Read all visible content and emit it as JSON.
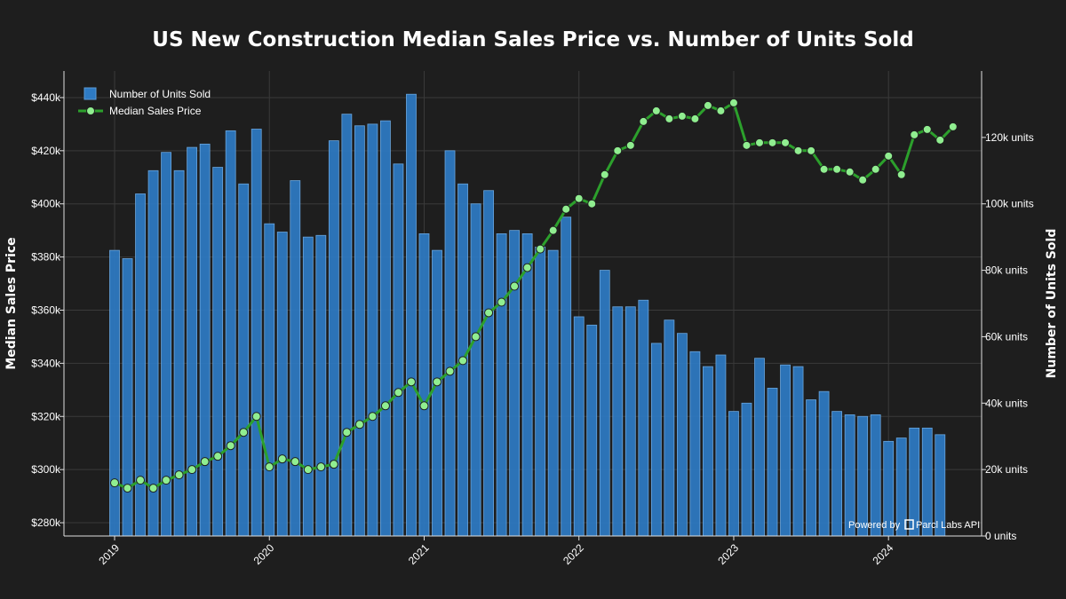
{
  "chart_data": {
    "type": "bar+line",
    "title": "US New Construction Median Sales Price vs. Number of Units Sold",
    "ylabel_left": "Median Sales Price",
    "ylabel_right": "Number of Units Sold",
    "y_left_range": [
      275000,
      450000
    ],
    "y_right_range": [
      0,
      140000
    ],
    "y_left_ticks": [
      "$280k",
      "$300k",
      "$320k",
      "$340k",
      "$360k",
      "$380k",
      "$400k",
      "$420k",
      "$440k"
    ],
    "y_right_ticks": [
      "0 units",
      "20k units",
      "40k units",
      "60k units",
      "80k units",
      "100k units",
      "120k units"
    ],
    "x_ticks": [
      "2019",
      "2020",
      "2021",
      "2022",
      "2023",
      "2024"
    ],
    "x_start": "2019-01",
    "grid": true,
    "legend_position": "top-left",
    "credit": "Powered by",
    "credit_brand": "Parcl Labs API",
    "series": [
      {
        "name": "Number of Units Sold",
        "kind": "bar",
        "axis": "right",
        "color": "#2e7bc4",
        "values": [
          86000,
          83500,
          103000,
          110000,
          115500,
          110000,
          117000,
          118000,
          111000,
          122000,
          106000,
          122500,
          94000,
          91500,
          107000,
          90000,
          90500,
          119000,
          127000,
          123500,
          124000,
          125000,
          112000,
          133000,
          91000,
          86000,
          116000,
          106000,
          100000,
          104000,
          91000,
          92000,
          91000,
          87000,
          86000,
          96000,
          66000,
          63500,
          80000,
          69000,
          69000,
          71000,
          58000,
          65000,
          61000,
          55500,
          51000,
          54500,
          37500,
          40000,
          53500,
          44500,
          51500,
          51000,
          41000,
          43500,
          37500,
          36500,
          36000,
          36500,
          28500,
          29500,
          32500,
          32500,
          30500
        ]
      },
      {
        "name": "Median Sales Price",
        "kind": "line",
        "axis": "left",
        "color": "#2ca02c",
        "values": [
          295000,
          293000,
          296000,
          293000,
          296000,
          298000,
          300000,
          303000,
          305000,
          309000,
          314000,
          320000,
          301000,
          304000,
          303000,
          300000,
          301000,
          302000,
          314000,
          317000,
          320000,
          324000,
          329000,
          333000,
          324000,
          333000,
          337000,
          341000,
          350000,
          359000,
          363000,
          369000,
          376000,
          383000,
          390000,
          398000,
          402000,
          400000,
          411000,
          420000,
          422000,
          431000,
          435000,
          432000,
          433000,
          432000,
          437000,
          435000,
          438000,
          422000,
          423000,
          423000,
          423000,
          420000,
          420000,
          413000,
          413000,
          412000,
          409000,
          413000,
          418000,
          411000,
          426000,
          428000,
          424000,
          429000
        ]
      }
    ]
  }
}
